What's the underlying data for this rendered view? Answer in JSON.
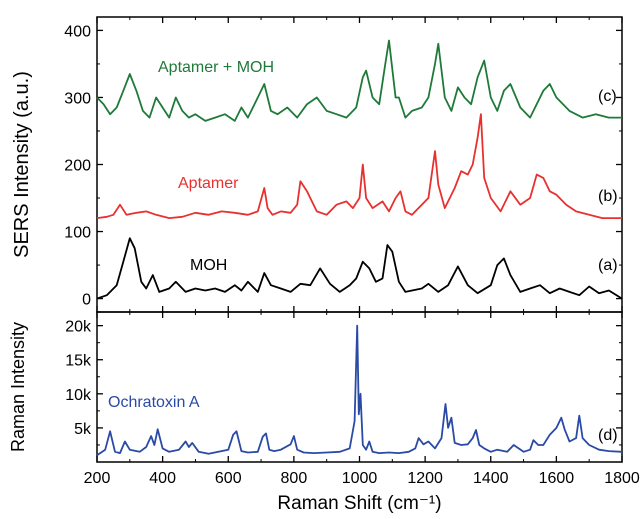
{
  "chart_data": [
    {
      "type": "line",
      "panel": "top",
      "ylabel": "SERS Intensity (a.u.)",
      "xlim": [
        200,
        1800
      ],
      "ylim": [
        -20,
        420
      ],
      "yticks": [
        0,
        100,
        200,
        300,
        400
      ],
      "grid": false,
      "series": [
        {
          "name": "MOH",
          "tag": "(a)",
          "color": "#000000",
          "x": [
            200,
            230,
            260,
            280,
            300,
            315,
            335,
            350,
            370,
            390,
            420,
            440,
            470,
            500,
            530,
            560,
            590,
            620,
            640,
            660,
            690,
            710,
            730,
            760,
            790,
            820,
            850,
            880,
            910,
            940,
            970,
            990,
            1010,
            1030,
            1050,
            1070,
            1085,
            1100,
            1120,
            1140,
            1160,
            1190,
            1210,
            1240,
            1270,
            1300,
            1330,
            1360,
            1400,
            1420,
            1440,
            1460,
            1490,
            1520,
            1550,
            1580,
            1610,
            1640,
            1670,
            1700,
            1730,
            1760,
            1800
          ],
          "y": [
            0,
            5,
            20,
            55,
            90,
            75,
            25,
            15,
            35,
            10,
            15,
            25,
            10,
            15,
            12,
            15,
            10,
            20,
            12,
            25,
            10,
            38,
            20,
            15,
            10,
            22,
            20,
            45,
            22,
            10,
            20,
            30,
            55,
            45,
            25,
            30,
            80,
            70,
            25,
            10,
            12,
            15,
            22,
            10,
            20,
            48,
            20,
            8,
            20,
            50,
            60,
            35,
            10,
            15,
            20,
            8,
            15,
            10,
            5,
            18,
            8,
            12,
            0
          ]
        },
        {
          "name": "Aptamer",
          "tag": "(b)",
          "color": "#e8312f",
          "x": [
            200,
            230,
            250,
            270,
            290,
            320,
            350,
            380,
            420,
            460,
            500,
            540,
            580,
            620,
            660,
            690,
            710,
            720,
            735,
            760,
            790,
            810,
            820,
            840,
            870,
            900,
            930,
            960,
            980,
            1000,
            1010,
            1020,
            1040,
            1070,
            1090,
            1110,
            1125,
            1140,
            1160,
            1190,
            1210,
            1230,
            1240,
            1260,
            1290,
            1310,
            1330,
            1345,
            1360,
            1370,
            1380,
            1400,
            1430,
            1460,
            1490,
            1520,
            1540,
            1560,
            1580,
            1600,
            1630,
            1660,
            1700,
            1740,
            1780,
            1800
          ],
          "y": [
            120,
            122,
            125,
            140,
            125,
            128,
            130,
            125,
            120,
            122,
            128,
            125,
            130,
            128,
            125,
            130,
            165,
            135,
            125,
            130,
            128,
            140,
            175,
            160,
            130,
            125,
            140,
            145,
            135,
            150,
            200,
            150,
            135,
            145,
            130,
            150,
            160,
            130,
            125,
            140,
            150,
            220,
            170,
            135,
            165,
            190,
            185,
            200,
            240,
            275,
            180,
            150,
            130,
            160,
            140,
            150,
            185,
            180,
            160,
            155,
            140,
            130,
            125,
            120,
            120,
            120
          ]
        },
        {
          "name": "Aptamer + MOH",
          "tag": "(c)",
          "color": "#1f7a3a",
          "x": [
            200,
            220,
            240,
            260,
            280,
            300,
            320,
            340,
            360,
            380,
            400,
            420,
            440,
            460,
            480,
            500,
            530,
            560,
            590,
            620,
            640,
            660,
            690,
            710,
            730,
            750,
            780,
            810,
            840,
            870,
            900,
            930,
            960,
            990,
            1010,
            1020,
            1040,
            1060,
            1080,
            1090,
            1110,
            1120,
            1140,
            1160,
            1190,
            1210,
            1230,
            1240,
            1260,
            1280,
            1300,
            1320,
            1340,
            1360,
            1380,
            1400,
            1420,
            1440,
            1460,
            1490,
            1520,
            1560,
            1580,
            1600,
            1640,
            1680,
            1720,
            1760,
            1800
          ],
          "y": [
            300,
            290,
            275,
            285,
            310,
            335,
            310,
            280,
            270,
            300,
            285,
            270,
            300,
            280,
            270,
            275,
            265,
            270,
            275,
            265,
            285,
            270,
            300,
            320,
            280,
            275,
            285,
            270,
            290,
            300,
            280,
            275,
            270,
            285,
            330,
            340,
            300,
            290,
            355,
            385,
            300,
            300,
            270,
            280,
            285,
            300,
            350,
            380,
            300,
            280,
            315,
            300,
            290,
            330,
            355,
            300,
            280,
            310,
            320,
            285,
            270,
            310,
            320,
            300,
            280,
            270,
            275,
            270,
            270
          ]
        }
      ]
    },
    {
      "type": "line",
      "panel": "bottom",
      "xlabel": "Raman Shift (cm⁻¹)",
      "ylabel": "Raman Intensity",
      "xlim": [
        200,
        1800
      ],
      "ylim": [
        0,
        22000
      ],
      "xticks": [
        200,
        400,
        600,
        800,
        1000,
        1200,
        1400,
        1600,
        1800
      ],
      "yticks": [
        5000,
        10000,
        15000,
        20000
      ],
      "ytick_labels": [
        "5k",
        "10k",
        "15k",
        "20k"
      ],
      "grid": false,
      "series": [
        {
          "name": "Ochratoxin A",
          "tag": "(d)",
          "color": "#2a4aa6",
          "x": [
            200,
            225,
            240,
            255,
            270,
            285,
            300,
            330,
            350,
            365,
            375,
            385,
            400,
            420,
            450,
            470,
            480,
            490,
            510,
            540,
            570,
            600,
            615,
            625,
            640,
            660,
            690,
            705,
            715,
            725,
            740,
            760,
            790,
            800,
            810,
            830,
            860,
            900,
            940,
            970,
            985,
            993,
            998,
            1003,
            1010,
            1020,
            1030,
            1040,
            1060,
            1090,
            1120,
            1150,
            1170,
            1180,
            1195,
            1210,
            1230,
            1250,
            1262,
            1270,
            1280,
            1290,
            1310,
            1330,
            1345,
            1355,
            1365,
            1380,
            1400,
            1420,
            1450,
            1470,
            1500,
            1520,
            1530,
            1545,
            1560,
            1580,
            1600,
            1615,
            1625,
            1640,
            1660,
            1670,
            1680,
            1700,
            1730,
            1760,
            1800
          ],
          "y": [
            1000,
            1800,
            4500,
            1500,
            1300,
            3000,
            1800,
            1500,
            2200,
            3800,
            2500,
            4800,
            2000,
            1500,
            1800,
            3000,
            2200,
            2800,
            1500,
            1200,
            1500,
            1800,
            4000,
            4500,
            1600,
            1400,
            1500,
            3700,
            4200,
            1800,
            1600,
            1800,
            2600,
            3800,
            1800,
            1400,
            1300,
            1400,
            1500,
            2000,
            6000,
            20000,
            7000,
            10000,
            2500,
            1800,
            3000,
            1500,
            1300,
            1400,
            1300,
            1500,
            2000,
            3500,
            2600,
            3000,
            2000,
            3500,
            8500,
            5000,
            6500,
            2800,
            2500,
            2600,
            3500,
            4700,
            2500,
            2000,
            1500,
            1800,
            1500,
            2500,
            1500,
            1800,
            3200,
            2500,
            2500,
            4000,
            5000,
            6500,
            4800,
            3000,
            3500,
            6800,
            3500,
            2500,
            1800,
            1600,
            1500
          ]
        }
      ]
    }
  ]
}
